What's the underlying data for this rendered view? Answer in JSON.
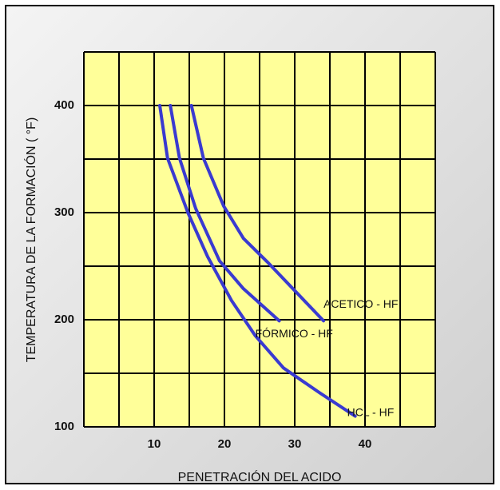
{
  "chart_data": {
    "type": "line",
    "xlabel": "PENETRACIÓN DEL ACIDO",
    "ylabel": "TEMPERATURA DE LA FORMACIÓN ( °F)",
    "xlim": [
      0,
      50
    ],
    "ylim": [
      100,
      450
    ],
    "xticks": [
      10,
      20,
      30,
      40
    ],
    "yticks": [
      100,
      200,
      300,
      400
    ],
    "xgrid": [
      0,
      5,
      10,
      15,
      20,
      25,
      30,
      35,
      40,
      45,
      50
    ],
    "ygrid": [
      100,
      150,
      200,
      250,
      300,
      350,
      400,
      450
    ],
    "grid": true,
    "series": [
      {
        "name": "HCL - HF",
        "color": "#3a3ad0",
        "x": [
          10.8,
          11.9,
          14.8,
          17.6,
          21,
          24.4,
          28.4,
          33.5,
          38.6
        ],
        "values": [
          400,
          351,
          300,
          259,
          218,
          185,
          155,
          132,
          110
        ]
      },
      {
        "name": "FÓRMICO - HF",
        "color": "#3a3ad0",
        "x": [
          12.3,
          13.6,
          15.9,
          19.3,
          22.7,
          27.8
        ],
        "values": [
          400,
          351,
          304,
          255,
          229,
          199
        ]
      },
      {
        "name": "ACETICO - HF",
        "color": "#3a3ad0",
        "x": [
          15.3,
          17,
          19.9,
          22.7,
          26.1,
          34.1
        ],
        "values": [
          400,
          351,
          306,
          276,
          254,
          199
        ]
      }
    ]
  }
}
